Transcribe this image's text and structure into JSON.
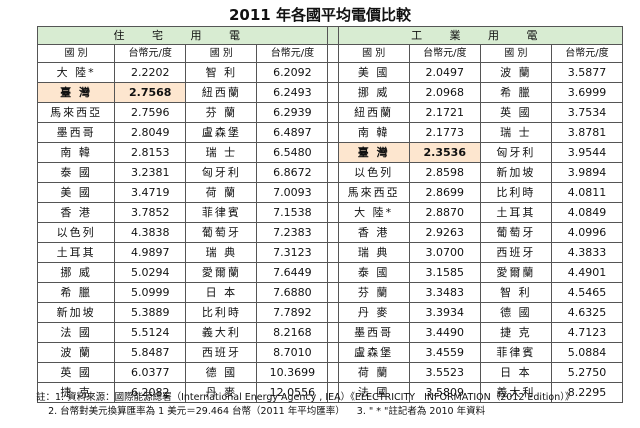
{
  "title": "2011 年各國平均電價比較",
  "sections": {
    "residential": "住 宅 用 電",
    "industrial": "工 業 用 電"
  },
  "headers": [
    "國 別",
    "台幣元/度",
    "國 別",
    "台幣元/度",
    "國 別",
    "台幣元/度",
    "國 別",
    "台幣元/度"
  ],
  "highlight_country": "臺 灣",
  "rows": [
    [
      "大 陸*",
      "2.2202",
      "智 利",
      "6.2092",
      "美 國",
      "2.0497",
      "波 蘭",
      "3.5877"
    ],
    [
      "臺 灣",
      "2.7568",
      "紐西蘭",
      "6.2493",
      "挪 威",
      "2.0968",
      "希 臘",
      "3.6999"
    ],
    [
      "馬來西亞",
      "2.7596",
      "芬 蘭",
      "6.2939",
      "紐西蘭",
      "2.1721",
      "英 國",
      "3.7534"
    ],
    [
      "墨西哥",
      "2.8049",
      "盧森堡",
      "6.4897",
      "南 韓",
      "2.1773",
      "瑞 士",
      "3.8781"
    ],
    [
      "南 韓",
      "2.8153",
      "瑞 士",
      "6.5480",
      "臺 灣",
      "2.3536",
      "匈牙利",
      "3.9544"
    ],
    [
      "泰 國",
      "3.2381",
      "匈牙利",
      "6.8672",
      "以色列",
      "2.8598",
      "新加坡",
      "3.9894"
    ],
    [
      "美 國",
      "3.4719",
      "荷 蘭",
      "7.0093",
      "馬來西亞",
      "2.8699",
      "比利時",
      "4.0811"
    ],
    [
      "香 港",
      "3.7852",
      "菲律賓",
      "7.1538",
      "大 陸*",
      "2.8870",
      "土耳其",
      "4.0849"
    ],
    [
      "以色列",
      "4.3838",
      "葡萄牙",
      "7.2383",
      "香 港",
      "2.9263",
      "葡萄牙",
      "4.0996"
    ],
    [
      "土耳其",
      "4.9897",
      "瑞 典",
      "7.3123",
      "瑞 典",
      "3.0700",
      "西班牙",
      "4.3833"
    ],
    [
      "挪 威",
      "5.0294",
      "愛爾蘭",
      "7.6449",
      "泰 國",
      "3.1585",
      "愛爾蘭",
      "4.4901"
    ],
    [
      "希 臘",
      "5.0999",
      "日 本",
      "7.6880",
      "芬 蘭",
      "3.3483",
      "智 利",
      "4.5465"
    ],
    [
      "新加坡",
      "5.3889",
      "比利時",
      "7.7892",
      "丹 麥",
      "3.3934",
      "德 國",
      "4.6325"
    ],
    [
      "法 國",
      "5.5124",
      "義大利",
      "8.2168",
      "墨西哥",
      "3.4490",
      "捷 克",
      "4.7123"
    ],
    [
      "波 蘭",
      "5.8487",
      "西班牙",
      "8.7010",
      "盧森堡",
      "3.4559",
      "菲律賓",
      "5.0884"
    ],
    [
      "英 國",
      "6.0377",
      "德 國",
      "10.3699",
      "荷 蘭",
      "3.5523",
      "日 本",
      "5.2750"
    ],
    [
      "捷 克",
      "6.2082",
      "丹 麥",
      "12.0556",
      "法 國",
      "3.5809",
      "義大利",
      "8.2295"
    ]
  ],
  "notes": [
    "註：1. 資料來源：國際能源總署（International Energy Agency , IEA）《ELECTRICITY   INFORMATION（2012 Edition）》",
    "    2. 台幣對美元換算匯率為 1 美元＝29.464 台幣（2011 年平均匯率）    3. \" * \"註記者為 2010 年資料"
  ],
  "colors": {
    "section_bg": "#d8ecd2",
    "highlight_bg": "#fde6cf"
  }
}
